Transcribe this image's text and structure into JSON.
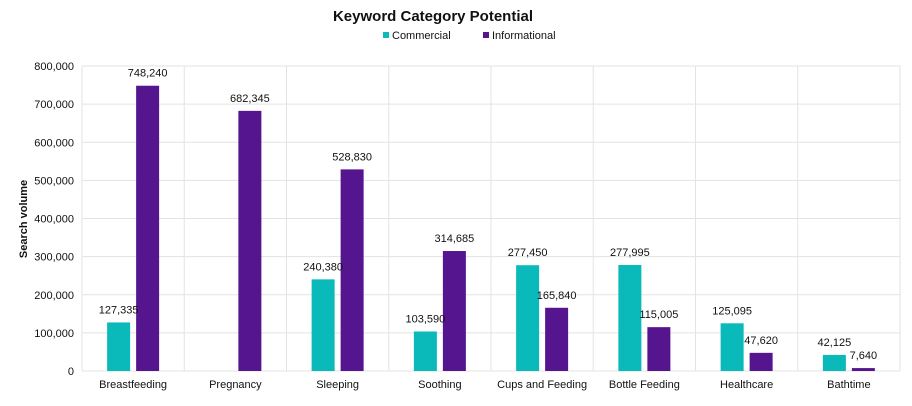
{
  "chart_data": {
    "type": "bar",
    "title": "Keyword Category Potential",
    "ylabel": "Search volume",
    "xlabel": "",
    "ylim": [
      0,
      800000
    ],
    "yticks": [
      "0",
      "100,000",
      "200,000",
      "300,000",
      "400,000",
      "500,000",
      "600,000",
      "700,000",
      "800,000"
    ],
    "grid": true,
    "legend_position": "top-center",
    "categories": [
      "Breastfeeding",
      "Pregnancy",
      "Sleeping",
      "Soothing",
      "Cups and Feeding",
      "Bottle Feeding",
      "Healthcare",
      "Bathtime"
    ],
    "series": [
      {
        "name": "Commercial",
        "color": "#0ab9b9",
        "values": [
          127335,
          null,
          240380,
          103590,
          277450,
          277995,
          125095,
          42125
        ],
        "labels": [
          "127,335",
          "",
          "240,380",
          "103,590",
          "277,450",
          "277,995",
          "125,095",
          "42,125"
        ]
      },
      {
        "name": "Informational",
        "color": "#55158f",
        "values": [
          748240,
          682345,
          528830,
          314685,
          165840,
          115005,
          47620,
          7640
        ],
        "labels": [
          "748,240",
          "682,345",
          "528,830",
          "314,685",
          "165,840",
          "115,005",
          "47,620",
          "7,640"
        ]
      }
    ]
  }
}
